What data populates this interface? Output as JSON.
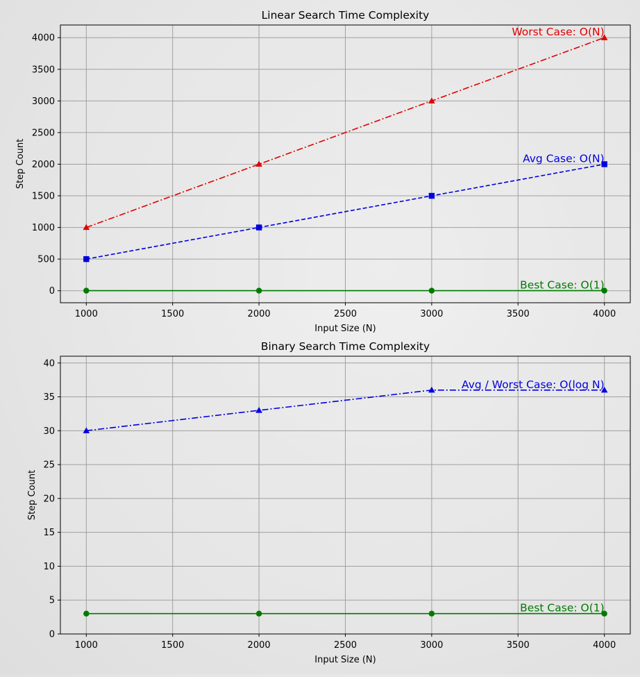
{
  "chart_data": [
    {
      "type": "line",
      "title": "Linear Search Time Complexity",
      "xlabel": "Input Size (N)",
      "ylabel": "Step Count",
      "x": [
        1000,
        2000,
        3000,
        4000
      ],
      "xlim": [
        850,
        4150
      ],
      "ylim": [
        -190,
        4200
      ],
      "xticks": [
        1000,
        1500,
        2000,
        2500,
        3000,
        3500,
        4000
      ],
      "yticks": [
        0,
        500,
        1000,
        1500,
        2000,
        2500,
        3000,
        3500,
        4000
      ],
      "grid": true,
      "series": [
        {
          "values": [
            1000,
            2000,
            3000,
            4000
          ],
          "color": "#e00000",
          "marker": "triangle",
          "dash": "dashdot",
          "label": "Worst Case: O(N)"
        },
        {
          "values": [
            500,
            1000,
            1500,
            2000
          ],
          "color": "#0000e0",
          "marker": "square",
          "dash": "dashed",
          "label": "Avg Case: O(N)"
        },
        {
          "values": [
            1,
            1,
            1,
            1
          ],
          "color": "#007a00",
          "marker": "circle",
          "dash": "solid",
          "label": "Best Case: O(1)"
        }
      ]
    },
    {
      "type": "line",
      "title": "Binary Search Time Complexity",
      "xlabel": "Input Size (N)",
      "ylabel": "Step Count",
      "x": [
        1000,
        2000,
        3000,
        4000
      ],
      "xlim": [
        850,
        4150
      ],
      "ylim": [
        0,
        41
      ],
      "xticks": [
        1000,
        1500,
        2000,
        2500,
        3000,
        3500,
        4000
      ],
      "yticks": [
        0,
        5,
        10,
        15,
        20,
        25,
        30,
        35,
        40
      ],
      "grid": true,
      "series": [
        {
          "values": [
            30,
            33,
            36,
            36
          ],
          "color": "#0000e0",
          "marker": "triangle",
          "dash": "dashdot",
          "label": "Avg / Worst Case: O(log N)"
        },
        {
          "values": [
            3,
            3,
            3,
            3
          ],
          "color": "#007a00",
          "marker": "circle",
          "dash": "solid",
          "label": "Best Case: O(1)"
        }
      ]
    }
  ]
}
